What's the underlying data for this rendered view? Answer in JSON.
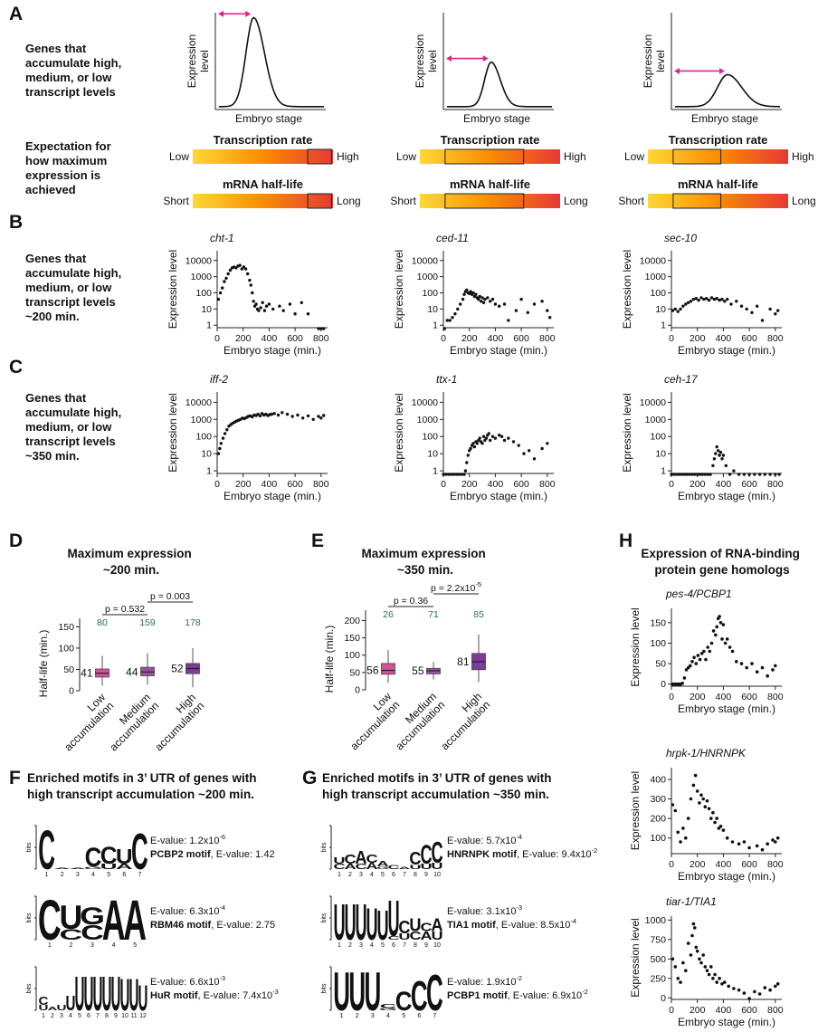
{
  "panel_labels": {
    "A": "A",
    "B": "B",
    "C": "C",
    "D": "D",
    "E": "E",
    "F": "F",
    "G": "G",
    "H": "H"
  },
  "panelA": {
    "row1_label": [
      "Genes that",
      "accumulate high,",
      "medium, or low",
      "transcript levels"
    ],
    "row2_label": [
      "Expectation for",
      "how maximum",
      "expression is",
      "achieved"
    ],
    "ylabel": [
      "Expression",
      "level"
    ],
    "xlabel": "Embryo stage",
    "curves": [
      {
        "peak_stage": 0.33,
        "peak_level": 0.92,
        "width": 0.13
      },
      {
        "peak_stage": 0.42,
        "peak_level": 0.46,
        "width": 0.11
      },
      {
        "peak_stage": 0.5,
        "peak_level": 0.33,
        "width": 0.17
      }
    ],
    "transcription": {
      "title": "Transcription rate",
      "low": "Low",
      "high": "High"
    },
    "halflife": {
      "title": "mRNA half-life",
      "low": "Short",
      "high": "Long"
    },
    "ranges": [
      [
        0.82,
        0.99
      ],
      [
        0.18,
        0.74
      ],
      [
        0.18,
        0.52
      ]
    ],
    "colors": {
      "bar_start": "#fdd835",
      "bar_mid": "#fb8c00",
      "bar_end": "#e53935",
      "arrow": "#e0238c"
    }
  },
  "panelB": {
    "label": [
      "Genes that",
      "accumulate high,",
      "medium, or low",
      "transcript levels",
      "~200 min."
    ],
    "ylabel": "Expression level",
    "xlabel": "Embryo stage (min.)",
    "yticks": [
      "1",
      "10",
      "100",
      "1000",
      "10000"
    ],
    "xticks": [
      "0",
      "200",
      "400",
      "600",
      "800"
    ]
  },
  "panelC": {
    "label": [
      "Genes that",
      "accumulate high,",
      "medium, or low",
      "transcript levels",
      "~350 min."
    ]
  },
  "panelD": {
    "title": [
      "Maximum expression",
      "~200 min."
    ],
    "ylabel": "Half-life (min.)",
    "yticks": [
      "0",
      "50",
      "100",
      "150"
    ],
    "categories": [
      [
        "Low",
        "accumulation"
      ],
      [
        "Medium",
        "accumulation"
      ],
      [
        "High",
        "accumulation"
      ]
    ],
    "counts": [
      "80",
      "159",
      "178"
    ],
    "medians_text": [
      "41",
      "44",
      "52"
    ],
    "p1": "p = 0.532",
    "p2": "p = 0.003"
  },
  "panelE": {
    "title": [
      "Maximum expression",
      "~350 min."
    ],
    "ylabel": "Half-life (min.)",
    "yticks": [
      "0",
      "50",
      "100",
      "150",
      "200"
    ],
    "counts": [
      "26",
      "71",
      "85"
    ],
    "medians_text": [
      "56",
      "55",
      "81"
    ],
    "p1": "p = 0.36",
    "p2": "p = 2.2x10",
    "p2_exp": "-5"
  },
  "panelF": {
    "title": [
      "Enriched motifs in 3’ UTR of genes with",
      "high transcript accumulation ~200 min."
    ],
    "motifs": [
      {
        "evalue": "E-value: 1.2x10",
        "evalue_exp": "-6",
        "ref": "PCBP2 motif",
        "ref_e": ", E-value: 1.42"
      },
      {
        "evalue": "E-value: 6.3x10",
        "evalue_exp": "-4",
        "ref": "RBM46 motif",
        "ref_e": ", E-value: 2.75"
      },
      {
        "evalue": "E-value: 6.6x10",
        "evalue_exp": "-3",
        "ref": "HuR motif",
        "ref_e": ", E-value: 7.4x10",
        "ref_exp": "-3"
      }
    ]
  },
  "panelG": {
    "title": [
      "Enriched motifs in 3’ UTR of genes with",
      "high transcript accumulation ~350 min."
    ],
    "motifs": [
      {
        "evalue": "E-value: 5.7x10",
        "evalue_exp": "-4",
        "ref": "HNRNPK motif",
        "ref_e": ", E-value: 9.4x10",
        "ref_exp": "-2"
      },
      {
        "evalue": "E-value: 3.1x10",
        "evalue_exp": "-3",
        "ref": "TIA1 motif",
        "ref_e": ", E-value: 8.5x10",
        "ref_exp": "-4"
      },
      {
        "evalue": "E-value: 1.9x10",
        "evalue_exp": "-2",
        "ref": "PCBP1 motif",
        "ref_e": ", E-value: 6.9x10",
        "ref_exp": "-2"
      }
    ]
  },
  "panelH": {
    "title": [
      "Expression of RNA-binding",
      "protein gene homologs"
    ],
    "ylabel": "Expression level",
    "xlabel": "Embryo stage (min.)"
  },
  "logo_colors": {
    "A": "#e41a1c",
    "C": "#1f3fbf",
    "G": "#f2a900",
    "U": "#1d9a1d"
  },
  "chart_data": [
    {
      "id": "B1",
      "type": "scatter",
      "gene": "cht-1",
      "yscale": "log",
      "xlim": [
        0,
        850
      ],
      "ylim": [
        0.7,
        40000
      ],
      "x": [
        10,
        25,
        40,
        55,
        70,
        85,
        100,
        115,
        130,
        145,
        160,
        175,
        190,
        205,
        220,
        235,
        250,
        260,
        270,
        280,
        290,
        300,
        310,
        320,
        335,
        350,
        365,
        380,
        400,
        430,
        480,
        510,
        560,
        600,
        650,
        700,
        780,
        800,
        820
      ],
      "y": [
        40,
        100,
        200,
        500,
        800,
        1500,
        2500,
        3500,
        4000,
        3500,
        4500,
        5000,
        3000,
        4000,
        3000,
        1500,
        600,
        300,
        100,
        30,
        15,
        20,
        10,
        8,
        12,
        25,
        8,
        15,
        20,
        10,
        15,
        8,
        20,
        5,
        25,
        5,
        0.6,
        0.6,
        0.6
      ]
    },
    {
      "id": "B2",
      "type": "scatter",
      "gene": "ced-11",
      "yscale": "log",
      "xlim": [
        0,
        850
      ],
      "ylim": [
        0.7,
        40000
      ],
      "x": [
        10,
        30,
        50,
        70,
        90,
        110,
        130,
        150,
        160,
        170,
        180,
        190,
        200,
        210,
        220,
        230,
        240,
        250,
        260,
        270,
        280,
        290,
        300,
        310,
        320,
        340,
        360,
        380,
        400,
        430,
        470,
        500,
        560,
        600,
        650,
        700,
        760,
        800,
        820
      ],
      "y": [
        0.6,
        2,
        2,
        3,
        5,
        10,
        20,
        40,
        80,
        120,
        150,
        100,
        90,
        120,
        80,
        100,
        60,
        80,
        50,
        40,
        60,
        30,
        50,
        25,
        40,
        50,
        30,
        40,
        20,
        15,
        20,
        2,
        8,
        40,
        6,
        20,
        30,
        8,
        3
      ]
    },
    {
      "id": "B3",
      "type": "scatter",
      "gene": "sec-10",
      "yscale": "log",
      "xlim": [
        0,
        850
      ],
      "ylim": [
        0.7,
        40000
      ],
      "x": [
        10,
        30,
        50,
        70,
        90,
        110,
        130,
        150,
        170,
        190,
        210,
        230,
        250,
        270,
        290,
        310,
        330,
        350,
        370,
        390,
        410,
        430,
        460,
        500,
        540,
        580,
        620,
        660,
        700,
        760,
        800,
        820
      ],
      "y": [
        8,
        10,
        7,
        10,
        15,
        20,
        25,
        30,
        40,
        45,
        35,
        50,
        40,
        45,
        35,
        50,
        40,
        45,
        35,
        40,
        30,
        40,
        20,
        30,
        15,
        10,
        6,
        15,
        2,
        10,
        5,
        8
      ]
    },
    {
      "id": "C1",
      "type": "scatter",
      "gene": "iff-2",
      "yscale": "log",
      "xlim": [
        0,
        850
      ],
      "ylim": [
        0.7,
        40000
      ],
      "x": [
        10,
        20,
        30,
        45,
        60,
        75,
        90,
        105,
        120,
        135,
        150,
        165,
        180,
        195,
        210,
        225,
        240,
        255,
        270,
        285,
        300,
        315,
        330,
        345,
        360,
        375,
        390,
        405,
        420,
        440,
        470,
        500,
        540,
        580,
        620,
        660,
        700,
        740,
        780,
        800,
        820
      ],
      "y": [
        10,
        20,
        40,
        80,
        150,
        250,
        400,
        500,
        600,
        700,
        800,
        900,
        1000,
        1200,
        1100,
        1300,
        1500,
        1600,
        1400,
        1800,
        1700,
        2000,
        1600,
        2200,
        1800,
        2000,
        1700,
        1900,
        2000,
        2200,
        1800,
        2500,
        2000,
        1500,
        1800,
        1200,
        1600,
        1000,
        1500,
        1200,
        1700
      ]
    },
    {
      "id": "C2",
      "type": "scatter",
      "gene": "ttx-1",
      "yscale": "log",
      "xlim": [
        0,
        850
      ],
      "ylim": [
        0.7,
        40000
      ],
      "x": [
        0,
        20,
        40,
        60,
        80,
        100,
        120,
        140,
        160,
        170,
        180,
        190,
        200,
        210,
        220,
        230,
        240,
        250,
        260,
        270,
        280,
        290,
        300,
        310,
        320,
        330,
        340,
        350,
        360,
        380,
        400,
        430,
        450,
        470,
        500,
        540,
        580,
        620,
        660,
        700,
        760,
        800
      ],
      "y": [
        0.6,
        0.6,
        0.6,
        0.6,
        0.6,
        0.6,
        0.6,
        0.6,
        0.6,
        1,
        3,
        8,
        15,
        20,
        30,
        40,
        25,
        50,
        40,
        60,
        80,
        50,
        40,
        100,
        60,
        80,
        120,
        150,
        60,
        100,
        80,
        120,
        100,
        60,
        80,
        50,
        30,
        10,
        15,
        5,
        20,
        40
      ]
    },
    {
      "id": "C3",
      "type": "scatter",
      "gene": "ceh-17",
      "yscale": "log",
      "xlim": [
        0,
        850
      ],
      "ylim": [
        0.7,
        40000
      ],
      "x": [
        0,
        20,
        40,
        60,
        80,
        100,
        120,
        140,
        160,
        180,
        200,
        220,
        240,
        260,
        280,
        300,
        320,
        330,
        340,
        350,
        360,
        370,
        380,
        390,
        400,
        420,
        450,
        480,
        520,
        560,
        600,
        640,
        680,
        720,
        760,
        800,
        830
      ],
      "y": [
        0.6,
        0.6,
        0.6,
        0.6,
        0.6,
        0.6,
        0.6,
        0.6,
        0.6,
        0.6,
        0.6,
        0.6,
        0.6,
        0.6,
        0.6,
        0.6,
        2,
        5,
        10,
        25,
        15,
        8,
        12,
        5,
        8,
        2,
        0.6,
        1,
        0.6,
        0.6,
        0.6,
        0.6,
        0.6,
        0.6,
        0.6,
        0.6,
        0.6
      ]
    },
    {
      "id": "D",
      "type": "box",
      "ylim": [
        0,
        170
      ],
      "boxes": [
        {
          "q1": 32,
          "median": 41,
          "q3": 51,
          "wlo": 12,
          "whi": 82
        },
        {
          "q1": 35,
          "median": 44,
          "q3": 55,
          "wlo": 14,
          "whi": 88
        },
        {
          "q1": 40,
          "median": 52,
          "q3": 64,
          "wlo": 8,
          "whi": 100
        }
      ],
      "colors": [
        "#d94f9b",
        "#a04fa6",
        "#7d3c98"
      ]
    },
    {
      "id": "E",
      "type": "box",
      "ylim": [
        0,
        230
      ],
      "boxes": [
        {
          "q1": 45,
          "median": 56,
          "q3": 76,
          "wlo": 20,
          "whi": 115
        },
        {
          "q1": 46,
          "median": 55,
          "q3": 62,
          "wlo": 30,
          "whi": 80
        },
        {
          "q1": 58,
          "median": 81,
          "q3": 105,
          "wlo": 22,
          "whi": 160
        }
      ],
      "colors": [
        "#d94f9b",
        "#a04fa6",
        "#7d3c98"
      ]
    },
    {
      "id": "H1",
      "type": "scatter",
      "gene": "pes-4/PCBP1",
      "ylim": [
        -5,
        185
      ],
      "xlim": [
        0,
        850
      ],
      "yticks": [
        0,
        50,
        100,
        150
      ],
      "xticks": [
        0,
        200,
        400,
        600,
        800
      ],
      "x": [
        10,
        25,
        40,
        55,
        70,
        85,
        100,
        115,
        130,
        145,
        160,
        175,
        190,
        205,
        220,
        235,
        250,
        265,
        280,
        295,
        310,
        325,
        340,
        350,
        360,
        370,
        380,
        390,
        400,
        415,
        430,
        450,
        470,
        500,
        540,
        580,
        620,
        660,
        700,
        740,
        780,
        800
      ],
      "y": [
        0,
        0,
        0,
        0,
        0,
        2,
        15,
        35,
        40,
        45,
        55,
        65,
        50,
        70,
        60,
        75,
        80,
        60,
        90,
        80,
        100,
        130,
        120,
        140,
        160,
        165,
        150,
        110,
        145,
        100,
        110,
        90,
        80,
        55,
        50,
        40,
        50,
        30,
        40,
        20,
        35,
        45
      ]
    },
    {
      "id": "H2",
      "type": "scatter",
      "gene": "hrpk-1/HNRNPK",
      "ylim": [
        20,
        460
      ],
      "xlim": [
        0,
        850
      ],
      "yticks": [
        100,
        200,
        300,
        400
      ],
      "xticks": [
        0,
        200,
        400,
        600,
        800
      ],
      "x": [
        10,
        30,
        50,
        70,
        90,
        110,
        130,
        150,
        170,
        185,
        200,
        215,
        230,
        245,
        260,
        275,
        290,
        305,
        320,
        335,
        350,
        365,
        380,
        400,
        430,
        470,
        520,
        560,
        600,
        660,
        700,
        740,
        780,
        800,
        820
      ],
      "y": [
        270,
        240,
        130,
        80,
        150,
        100,
        200,
        300,
        370,
        420,
        340,
        280,
        320,
        300,
        260,
        290,
        250,
        200,
        230,
        180,
        200,
        150,
        160,
        140,
        100,
        80,
        70,
        80,
        50,
        60,
        40,
        70,
        90,
        80,
        100
      ]
    },
    {
      "id": "H3",
      "type": "scatter",
      "gene": "tiar-1/TIA1",
      "ylim": [
        -20,
        1050
      ],
      "xlim": [
        0,
        850
      ],
      "yticks": [
        0,
        250,
        500,
        750,
        1000
      ],
      "xticks": [
        0,
        200,
        400,
        600,
        800
      ],
      "x": [
        10,
        30,
        50,
        70,
        90,
        110,
        130,
        150,
        160,
        170,
        180,
        190,
        200,
        215,
        230,
        245,
        260,
        275,
        290,
        305,
        320,
        335,
        350,
        370,
        390,
        410,
        440,
        480,
        520,
        560,
        600,
        640,
        680,
        720,
        760,
        800,
        820
      ],
      "y": [
        500,
        400,
        250,
        200,
        450,
        350,
        700,
        550,
        800,
        950,
        900,
        650,
        600,
        500,
        450,
        550,
        400,
        350,
        300,
        400,
        250,
        300,
        200,
        250,
        180,
        200,
        150,
        120,
        100,
        60,
        -10,
        80,
        50,
        130,
        100,
        150,
        180
      ]
    }
  ]
}
